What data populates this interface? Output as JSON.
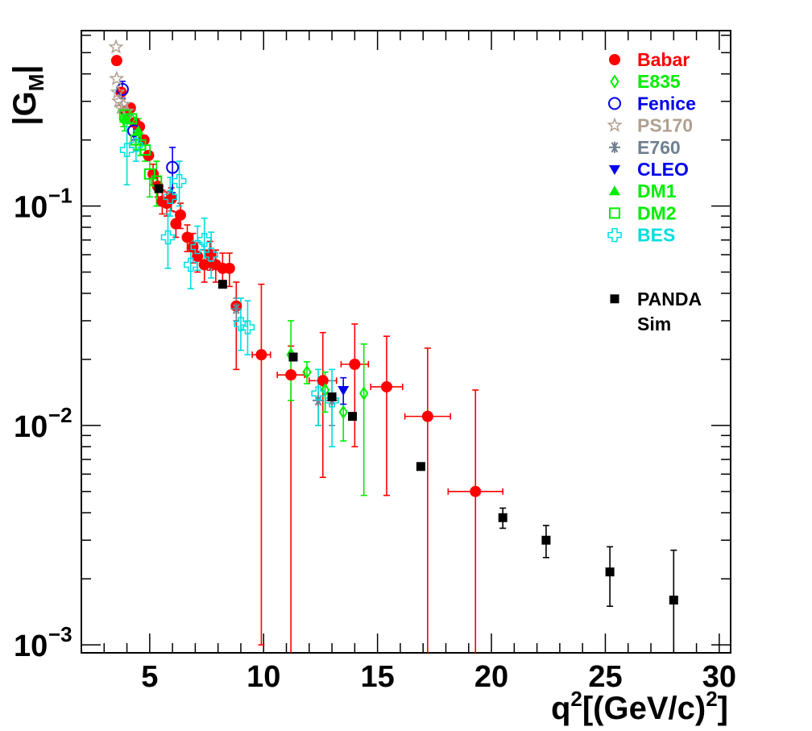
{
  "chart_data": {
    "type": "scatter",
    "title": "",
    "xlabel": "q²[(GeV/c)²]",
    "ylabel": "|G_M|",
    "xlim": [
      2.0,
      30.5
    ],
    "ylim": [
      0.00092,
      0.63
    ],
    "yscale": "log",
    "xticks": [
      5,
      10,
      15,
      20,
      25,
      30
    ],
    "yticks": [
      {
        "value": 0.1,
        "base": "10",
        "exp": "−1"
      },
      {
        "value": 0.01,
        "base": "10",
        "exp": "−2"
      },
      {
        "value": 0.001,
        "base": "10",
        "exp": "−3"
      }
    ],
    "legend_position": "top-right",
    "series": [
      {
        "name": "Babar",
        "marker": "filled-circle",
        "color": "#ff0000",
        "error_color": "#ff0000",
        "points": [
          {
            "x": 3.55,
            "y": 0.46,
            "el": 0.02,
            "eh": 0.02
          },
          {
            "x": 3.75,
            "y": 0.33
          },
          {
            "x": 3.95,
            "y": 0.27
          },
          {
            "x": 4.15,
            "y": 0.28
          },
          {
            "x": 4.35,
            "y": 0.24
          },
          {
            "x": 4.55,
            "y": 0.23
          },
          {
            "x": 4.75,
            "y": 0.2
          },
          {
            "x": 4.95,
            "y": 0.17
          },
          {
            "x": 5.15,
            "y": 0.14,
            "el": 0.015,
            "eh": 0.015
          },
          {
            "x": 5.35,
            "y": 0.123,
            "el": 0.013,
            "eh": 0.013
          },
          {
            "x": 5.55,
            "y": 0.105,
            "el": 0.013,
            "eh": 0.013
          },
          {
            "x": 5.75,
            "y": 0.103,
            "el": 0.013,
            "eh": 0.013
          },
          {
            "x": 5.95,
            "y": 0.108,
            "el": 0.013,
            "eh": 0.013
          },
          {
            "x": 6.15,
            "y": 0.083,
            "el": 0.011,
            "eh": 0.011
          },
          {
            "x": 6.35,
            "y": 0.091,
            "el": 0.012,
            "eh": 0.012
          },
          {
            "x": 6.65,
            "y": 0.072,
            "el": 0.01,
            "eh": 0.01
          },
          {
            "x": 6.9,
            "y": 0.065,
            "el": 0.01,
            "eh": 0.01
          },
          {
            "x": 7.1,
            "y": 0.059,
            "el": 0.009,
            "eh": 0.009
          },
          {
            "x": 7.4,
            "y": 0.054,
            "el": 0.009,
            "eh": 0.009
          },
          {
            "x": 7.65,
            "y": 0.06,
            "el": 0.009,
            "eh": 0.009
          },
          {
            "x": 7.9,
            "y": 0.054,
            "el": 0.009,
            "eh": 0.009
          },
          {
            "x": 8.2,
            "y": 0.052,
            "el": 0.009,
            "eh": 0.009
          },
          {
            "x": 8.5,
            "y": 0.052,
            "el": 0.009,
            "eh": 0.009
          },
          {
            "x": 8.8,
            "y": 0.035,
            "el": 0.017,
            "eh": 0.01
          },
          {
            "x": 9.9,
            "y": 0.021,
            "el": 0.02,
            "eh": 0.023,
            "xerr": 0.4
          },
          {
            "x": 11.2,
            "y": 0.017,
            "el": 0.0163,
            "eh": 0.006,
            "xerr": 0.6
          },
          {
            "x": 12.6,
            "y": 0.016,
            "el": 0.0102,
            "eh": 0.0105,
            "xerr": 0.6
          },
          {
            "x": 14.0,
            "y": 0.019,
            "el": 0.011,
            "eh": 0.01,
            "xerr": 0.6
          },
          {
            "x": 15.4,
            "y": 0.015,
            "el": 0.0102,
            "eh": 0.0105,
            "xerr": 0.7
          },
          {
            "x": 17.2,
            "y": 0.011,
            "el": 0.0101,
            "eh": 0.0115,
            "xerr": 1.0
          },
          {
            "x": 19.3,
            "y": 0.005,
            "el": 0.0041,
            "eh": 0.0095,
            "xerr": 1.2
          }
        ]
      },
      {
        "name": "E835",
        "marker": "open-diamond",
        "color": "#00ee00",
        "error_color": "#00ee00",
        "points": [
          {
            "x": 3.85,
            "y": 0.25,
            "el": 0.02,
            "eh": 0.02
          },
          {
            "x": 4.2,
            "y": 0.25,
            "el": 0.02,
            "eh": 0.02
          },
          {
            "x": 11.2,
            "y": 0.021,
            "el": 0.008,
            "eh": 0.009
          },
          {
            "x": 11.9,
            "y": 0.0175,
            "el": 0.002,
            "eh": 0.002
          },
          {
            "x": 12.7,
            "y": 0.0145,
            "el": 0.003,
            "eh": 0.003
          },
          {
            "x": 13.5,
            "y": 0.0115,
            "el": 0.003,
            "eh": 0.003
          },
          {
            "x": 14.4,
            "y": 0.014,
            "el": 0.0092,
            "eh": 0.0095
          }
        ]
      },
      {
        "name": "Fenice",
        "marker": "open-circle",
        "color": "#0000ee",
        "error_color": "#0000ee",
        "points": [
          {
            "x": 3.8,
            "y": 0.34,
            "el": 0.03,
            "eh": 0.03
          },
          {
            "x": 4.3,
            "y": 0.22,
            "el": 0.02,
            "eh": 0.02
          },
          {
            "x": 6.0,
            "y": 0.15,
            "el": 0.035,
            "eh": 0.035
          }
        ]
      },
      {
        "name": "PS170",
        "marker": "open-star",
        "color": "#b0a090",
        "error_color": "#b0a090",
        "points": [
          {
            "x": 3.52,
            "y": 0.53
          },
          {
            "x": 3.55,
            "y": 0.38
          },
          {
            "x": 3.6,
            "y": 0.33
          },
          {
            "x": 3.65,
            "y": 0.3
          },
          {
            "x": 3.75,
            "y": 0.28
          },
          {
            "x": 3.85,
            "y": 0.29
          },
          {
            "x": 4.0,
            "y": 0.27
          }
        ]
      },
      {
        "name": "E760",
        "marker": "asterisk",
        "color": "#708090",
        "error_color": "#708090",
        "points": [
          {
            "x": 8.8,
            "y": 0.034,
            "el": 0.004,
            "eh": 0.004
          },
          {
            "x": 12.4,
            "y": 0.013,
            "el": 0.003,
            "eh": 0.003
          },
          {
            "x": 13.0,
            "y": 0.013,
            "el": 0.003,
            "eh": 0.003
          }
        ]
      },
      {
        "name": "CLEO",
        "marker": "filled-triangle-down",
        "color": "#0000ee",
        "error_color": "#0000ee",
        "points": [
          {
            "x": 13.5,
            "y": 0.0145,
            "el": 0.002,
            "eh": 0.002
          }
        ]
      },
      {
        "name": "DM1",
        "marker": "filled-triangle-up",
        "color": "#00ee00",
        "error_color": "#00ee00",
        "points": [
          {
            "x": 3.9,
            "y": 0.25,
            "el": 0.03,
            "eh": 0.03
          },
          {
            "x": 4.5,
            "y": 0.22,
            "el": 0.03,
            "eh": 0.03
          }
        ]
      },
      {
        "name": "DM2",
        "marker": "open-square",
        "color": "#00ee00",
        "error_color": "#00ee00",
        "points": [
          {
            "x": 3.9,
            "y": 0.26,
            "el": 0.02,
            "eh": 0.02
          },
          {
            "x": 4.2,
            "y": 0.25,
            "el": 0.02,
            "eh": 0.02
          },
          {
            "x": 4.4,
            "y": 0.2,
            "el": 0.02,
            "eh": 0.02
          },
          {
            "x": 4.6,
            "y": 0.19,
            "el": 0.02,
            "eh": 0.02
          },
          {
            "x": 4.8,
            "y": 0.18,
            "el": 0.02,
            "eh": 0.02
          },
          {
            "x": 5.0,
            "y": 0.14,
            "el": 0.03,
            "eh": 0.03
          },
          {
            "x": 5.3,
            "y": 0.13,
            "el": 0.03,
            "eh": 0.03
          }
        ]
      },
      {
        "name": "BES",
        "marker": "open-cross",
        "color": "#00dddd",
        "error_color": "#00dddd",
        "points": [
          {
            "x": 4.0,
            "y": 0.18,
            "el": 0.055,
            "eh": 0.065
          },
          {
            "x": 4.4,
            "y": 0.19,
            "el": 0.03,
            "eh": 0.03
          },
          {
            "x": 5.9,
            "y": 0.11,
            "el": 0.02,
            "eh": 0.025
          },
          {
            "x": 6.3,
            "y": 0.13,
            "el": 0.03,
            "eh": 0.03
          },
          {
            "x": 5.8,
            "y": 0.072,
            "el": 0.02,
            "eh": 0.02
          },
          {
            "x": 6.8,
            "y": 0.054,
            "el": 0.012,
            "eh": 0.015
          },
          {
            "x": 7.1,
            "y": 0.065,
            "el": 0.014,
            "eh": 0.016
          },
          {
            "x": 7.4,
            "y": 0.07,
            "el": 0.015,
            "eh": 0.018
          },
          {
            "x": 7.7,
            "y": 0.06,
            "el": 0.013,
            "eh": 0.016
          },
          {
            "x": 9.0,
            "y": 0.029,
            "el": 0.007,
            "eh": 0.009
          },
          {
            "x": 9.3,
            "y": 0.028,
            "el": 0.007,
            "eh": 0.009
          },
          {
            "x": 12.4,
            "y": 0.014,
            "el": 0.004,
            "eh": 0.004
          },
          {
            "x": 13.0,
            "y": 0.013,
            "el": 0.005,
            "eh": 0.005
          }
        ]
      },
      {
        "name": "PANDA Sim",
        "name_lines": [
          "PANDA",
          "Sim"
        ],
        "marker": "filled-square",
        "color": "#000000",
        "error_color": "#000000",
        "legend_gap": true,
        "points": [
          {
            "x": 5.4,
            "y": 0.12
          },
          {
            "x": 8.2,
            "y": 0.044
          },
          {
            "x": 11.3,
            "y": 0.0205
          },
          {
            "x": 13.0,
            "y": 0.0135
          },
          {
            "x": 13.9,
            "y": 0.011
          },
          {
            "x": 16.9,
            "y": 0.0065
          },
          {
            "x": 20.5,
            "y": 0.0038,
            "el": 0.0004,
            "eh": 0.0004
          },
          {
            "x": 22.4,
            "y": 0.003,
            "el": 0.0005,
            "eh": 0.0005
          },
          {
            "x": 25.2,
            "y": 0.00215,
            "el": 0.00065,
            "eh": 0.00065
          },
          {
            "x": 28.0,
            "y": 0.0016,
            "el": 0.00068,
            "eh": 0.0011
          }
        ]
      }
    ]
  }
}
